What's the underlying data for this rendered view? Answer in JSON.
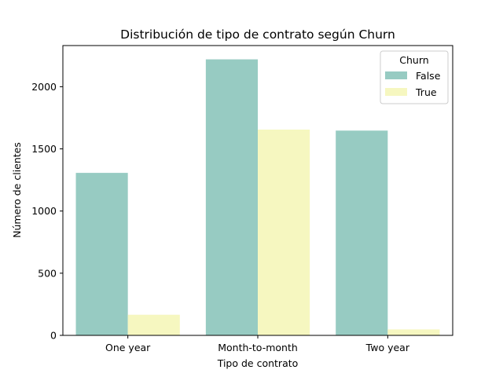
{
  "chart_data": {
    "type": "bar",
    "title": "Distribución de tipo de contrato según Churn",
    "xlabel": "Tipo de contrato",
    "ylabel": "Número de clientes",
    "categories": [
      "One year",
      "Month-to-month",
      "Two year"
    ],
    "series": [
      {
        "name": "False",
        "values": [
          1307,
          2220,
          1647
        ],
        "color": "#97cbc2"
      },
      {
        "name": "True",
        "values": [
          166,
          1655,
          48
        ],
        "color": "#f6f7c0"
      }
    ],
    "ylim": [
      0,
      2331
    ],
    "yticks": [
      0,
      500,
      1000,
      1500,
      2000
    ],
    "grid": false,
    "legend": {
      "title": "Churn",
      "placement": "top-right"
    }
  }
}
